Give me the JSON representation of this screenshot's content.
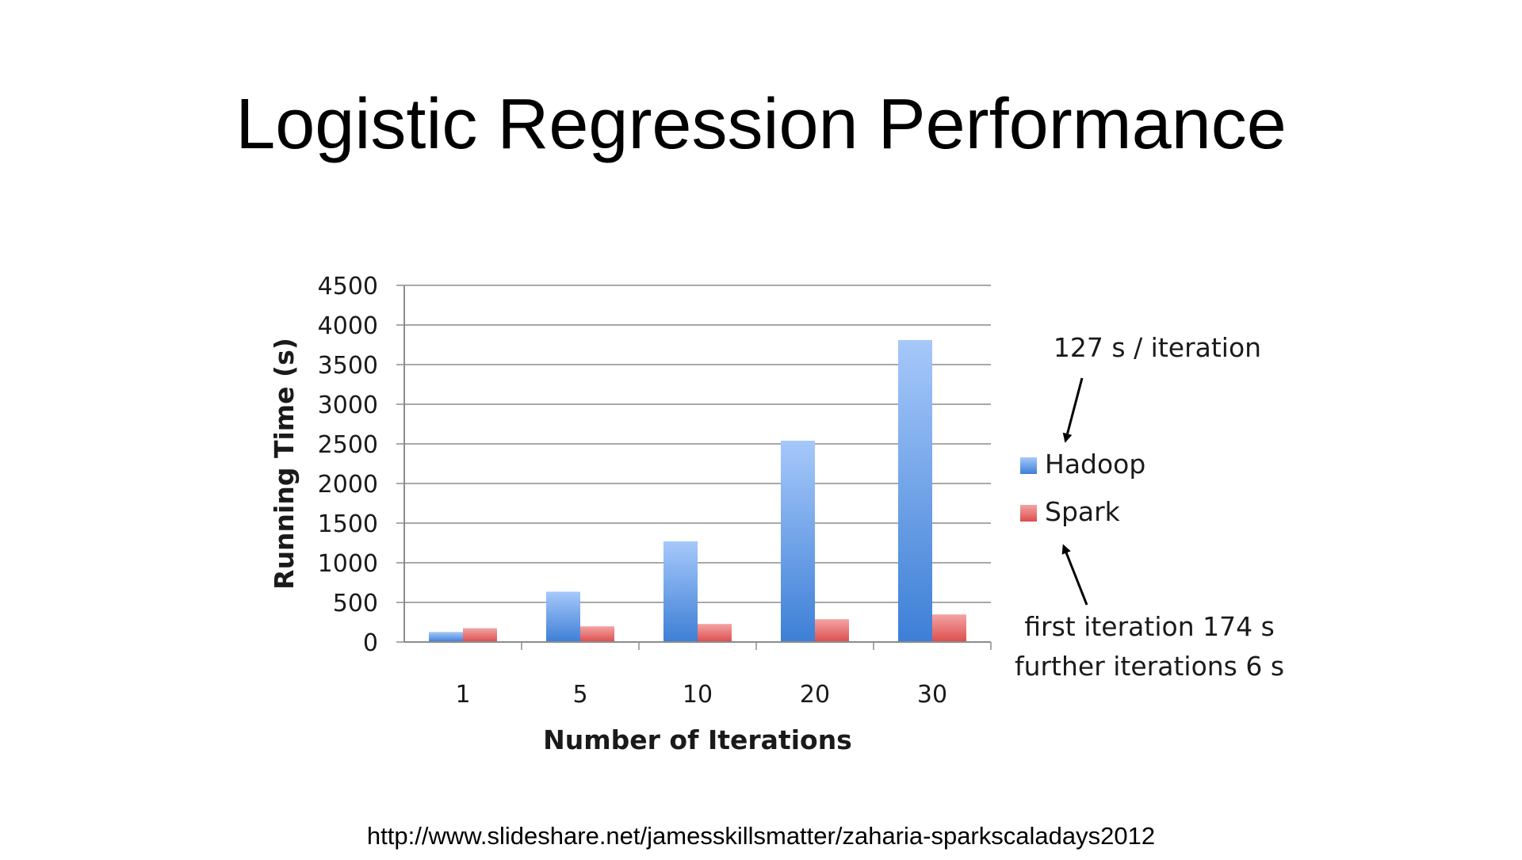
{
  "slide": {
    "title": "Logistic Regression Performance",
    "source": "http://www.slideshare.net/jamesskillsmatter/zaharia-sparkscaladays2012"
  },
  "annotations": {
    "hadoop_note": "127 s / iteration",
    "spark_note_line1": "first iteration 174 s",
    "spark_note_line2": "further iterations 6 s"
  },
  "colors": {
    "hadoop_top": "#a6c8fa",
    "hadoop_bottom": "#3d7fd6",
    "spark_top": "#f4a3a3",
    "spark_bottom": "#dc4e4e",
    "gridline": "#8c8c8c"
  },
  "chart_data": {
    "type": "bar",
    "categories": [
      "1",
      "5",
      "10",
      "20",
      "30"
    ],
    "series": [
      {
        "name": "Hadoop",
        "values": [
          127,
          635,
          1270,
          2540,
          3810
        ]
      },
      {
        "name": "Spark",
        "values": [
          174,
          198,
          228,
          288,
          348
        ]
      }
    ],
    "xlabel": "Number of Iterations",
    "ylabel": "Running Time (s)",
    "ylim": [
      0,
      4500
    ],
    "yticks": [
      "0",
      "500",
      "1000",
      "1500",
      "2000",
      "2500",
      "3000",
      "3500",
      "4000",
      "4500"
    ],
    "grid": true,
    "legend": "right"
  }
}
